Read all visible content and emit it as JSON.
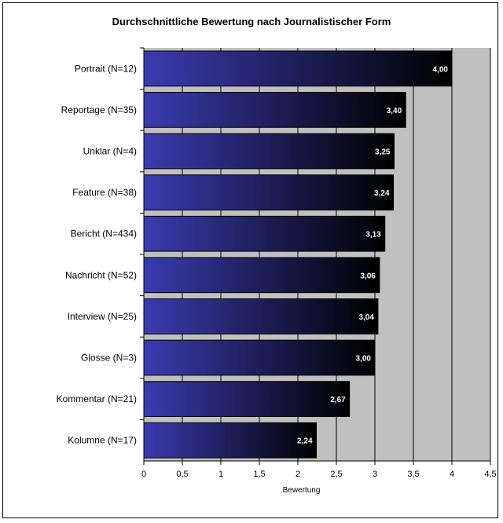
{
  "chart_data": {
    "type": "bar",
    "orientation": "horizontal",
    "title": "Durchschnittliche Bewertung nach Journalistischer Form",
    "xlabel": "Bewertung",
    "ylabel": "",
    "categories": [
      "Portrait (N=12)",
      "Reportage (N=35)",
      "Unklar (N=4)",
      "Feature (N=38)",
      "Bericht (N=434)",
      "Nachricht (N=52)",
      "Interview (N=25)",
      "Glosse (N=3)",
      "Kommentar (N=21)",
      "Kolumne  (N=17)"
    ],
    "values": [
      4.0,
      3.4,
      3.25,
      3.24,
      3.13,
      3.06,
      3.04,
      3.0,
      2.67,
      2.24
    ],
    "data_labels": [
      "4,00",
      "3,40",
      "3,25",
      "3,24",
      "3,13",
      "3,06",
      "3,04",
      "3,00",
      "2,67",
      "2,24"
    ],
    "xlim": [
      0,
      4.5
    ],
    "ticks": [
      "0",
      "0,5",
      "1",
      "1,5",
      "2",
      "2,5",
      "3",
      "3,5",
      "4",
      "4,5"
    ],
    "grid": true,
    "plot_background": "#c0c0c0",
    "bar_gradient": [
      "#3b3bb0",
      "#000000"
    ]
  }
}
